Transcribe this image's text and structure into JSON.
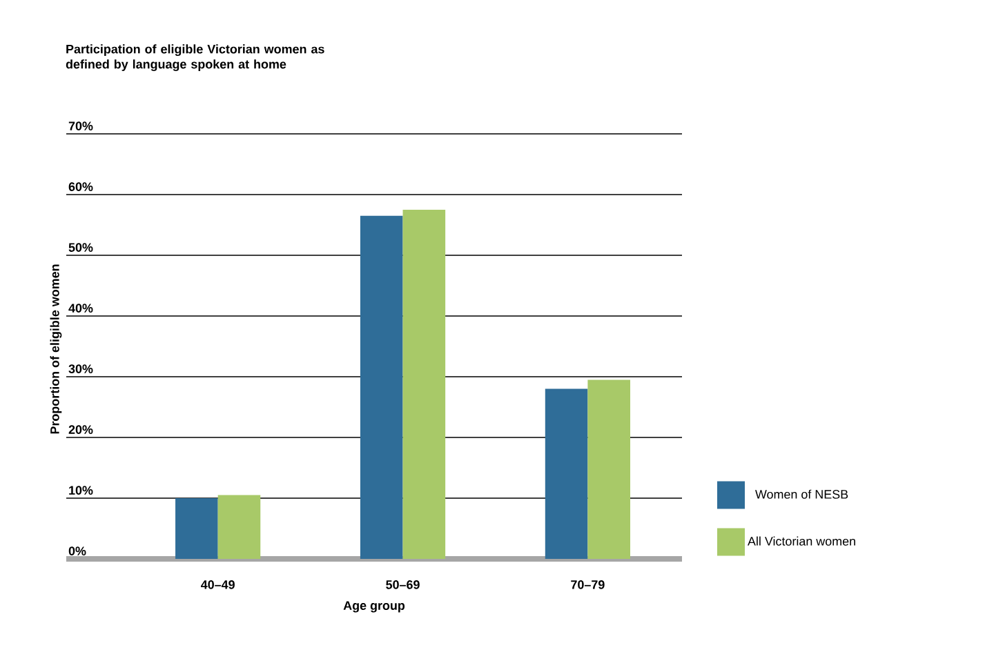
{
  "chart_data": {
    "type": "bar",
    "title": "Participation of eligible Victorian women as defined by language spoken at home",
    "xlabel": "Age group",
    "ylabel": "Proportion of eligible women",
    "categories": [
      "40–49",
      "50–69",
      "70–79"
    ],
    "series": [
      {
        "name": "Women of NESB",
        "color": "#2f6d98",
        "values": [
          10,
          56.5,
          28
        ]
      },
      {
        "name": "All Victorian women",
        "color": "#a8c968",
        "values": [
          10.5,
          57.5,
          29.5
        ]
      }
    ],
    "ylim": [
      0,
      70
    ],
    "yticks": [
      {
        "value": 0,
        "label": "0%"
      },
      {
        "value": 10,
        "label": "10%"
      },
      {
        "value": 20,
        "label": "20%"
      },
      {
        "value": 30,
        "label": "30%"
      },
      {
        "value": 40,
        "label": "40%"
      },
      {
        "value": 50,
        "label": "50%"
      },
      {
        "value": 60,
        "label": "60%"
      },
      {
        "value": 70,
        "label": "70%"
      }
    ],
    "grid": "y",
    "legend": "bottom right"
  }
}
